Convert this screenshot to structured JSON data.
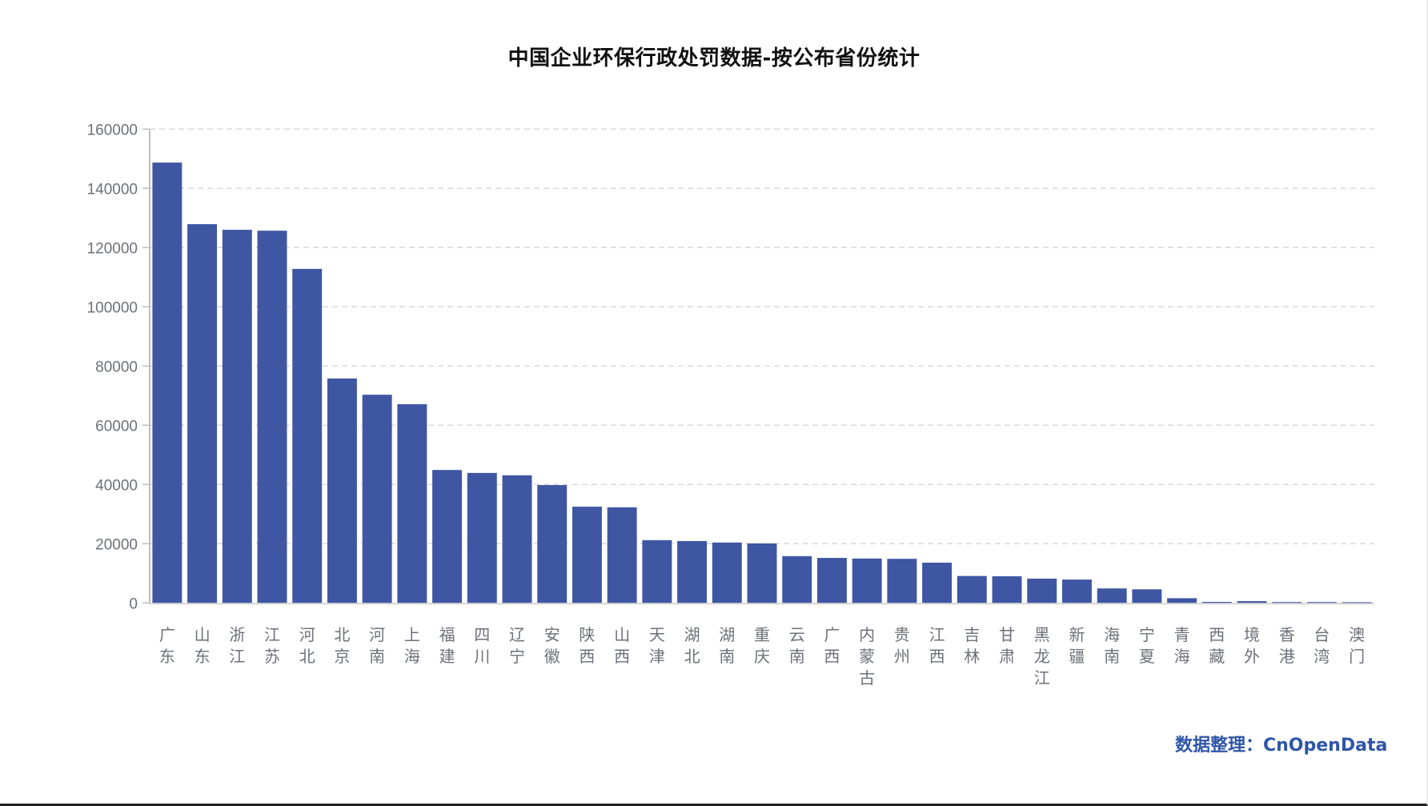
{
  "chart_data": {
    "type": "bar",
    "title": "中国企业环保行政处罚数据-按公布省份统计",
    "xlabel": "",
    "ylabel": "",
    "ylim": [
      0,
      160000
    ],
    "yticks": [
      0,
      20000,
      40000,
      60000,
      80000,
      100000,
      120000,
      140000,
      160000
    ],
    "grid": "horizontal dashed",
    "legend": "none",
    "bar_color": "#3f56a3",
    "categories": [
      "广东",
      "山东",
      "浙江",
      "江苏",
      "河北",
      "北京",
      "河南",
      "上海",
      "福建",
      "四川",
      "辽宁",
      "安徽",
      "陕西",
      "山西",
      "天津",
      "湖北",
      "湖南",
      "重庆",
      "云南",
      "广西",
      "内蒙古",
      "贵州",
      "江西",
      "吉林",
      "甘肃",
      "黑龙江",
      "新疆",
      "海南",
      "宁夏",
      "青海",
      "西藏",
      "境外",
      "香港",
      "台湾",
      "澳门"
    ],
    "values": [
      148700,
      127900,
      126000,
      125700,
      112800,
      75800,
      70300,
      67100,
      44900,
      43900,
      43100,
      39800,
      32500,
      32300,
      21200,
      20900,
      20400,
      20100,
      15800,
      15200,
      15000,
      14900,
      13600,
      9100,
      9000,
      8200,
      7900,
      4900,
      4600,
      1600,
      350,
      600,
      300,
      300,
      250
    ]
  },
  "credit": "数据整理：CnOpenData"
}
